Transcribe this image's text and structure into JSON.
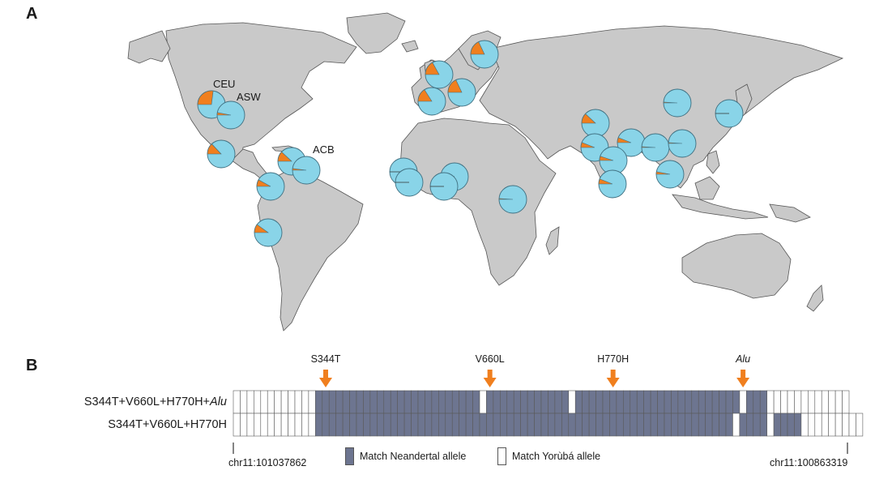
{
  "panel_a": {
    "label": "A",
    "population_labels": [
      {
        "id": "ceu",
        "text": "CEU"
      },
      {
        "id": "asw",
        "text": "ASW"
      },
      {
        "id": "acb",
        "text": "ACB"
      }
    ],
    "colors": {
      "land": "#c9c9c9",
      "land_stroke": "#555555",
      "pie_major": "#89d4e8",
      "pie_minor": "#f07f1e",
      "pie_stroke": "#3f6f80"
    },
    "pies": [
      {
        "id": "ceu",
        "fraction": 0.27
      },
      {
        "id": "asw",
        "fraction": 0.03
      },
      {
        "id": "mex",
        "fraction": 0.13
      },
      {
        "id": "pel",
        "fraction": 0.1
      },
      {
        "id": "clm",
        "fraction": 0.08
      },
      {
        "id": "pur",
        "fraction": 0.12
      },
      {
        "id": "acb",
        "fraction": 0.02
      },
      {
        "id": "fin",
        "fraction": 0.18
      },
      {
        "id": "gbr",
        "fraction": 0.17
      },
      {
        "id": "tsi",
        "fraction": 0.18
      },
      {
        "id": "ibs",
        "fraction": 0.16
      },
      {
        "id": "gwd",
        "fraction": 0.0
      },
      {
        "id": "msl",
        "fraction": 0.0
      },
      {
        "id": "esn",
        "fraction": 0.0
      },
      {
        "id": "yri",
        "fraction": 0.0
      },
      {
        "id": "lwk",
        "fraction": 0.01
      },
      {
        "id": "pjl",
        "fraction": 0.12
      },
      {
        "id": "gih",
        "fraction": 0.06
      },
      {
        "id": "beb",
        "fraction": 0.06
      },
      {
        "id": "stu",
        "fraction": 0.05
      },
      {
        "id": "itu",
        "fraction": 0.06
      },
      {
        "id": "cdx",
        "fraction": 0.01
      },
      {
        "id": "chb",
        "fraction": 0.01
      },
      {
        "id": "khv",
        "fraction": 0.03
      },
      {
        "id": "chs",
        "fraction": 0.01
      },
      {
        "id": "jpt",
        "fraction": 0.0
      }
    ]
  },
  "panel_b": {
    "label": "B",
    "rows": [
      {
        "label_html": "S344T+V660L+H770H+<i>Alu</i>",
        "cells": "WWWWWWWWWWWWNNNNNNNNNNNNNNNNNNNNNNNNWNNNNNNNNNNNNWNNNNNNNNNNNNNNNNNNNNNNNNWNNNWWWWWWWWWWWW"
      },
      {
        "label_html": "S344T+V660L+H770H",
        "cells": "WWWWWWWWWWWWNNNNNNNNNNNNNNNNNNNNNNNNNNNNNNNNNNNNNNNNNNNNNNNNNNNNNNNNNNNNNWNNNNWNNNNWWWWWWWWW"
      }
    ],
    "markers": [
      {
        "label_html": "S344T",
        "cell": 13
      },
      {
        "label_html": "V660L",
        "cell": 37
      },
      {
        "label_html": "H770H",
        "cell": 55
      },
      {
        "label_html": "<i>Alu</i>",
        "cell": 74
      }
    ],
    "coord_left": "chr11:101037862",
    "coord_right": "chr11:100863319",
    "legend": [
      {
        "id": "neandertal",
        "label": "Match Neandertal allele",
        "color": "#6d7590"
      },
      {
        "id": "yoruba",
        "label": "Match Yorùbá allele",
        "color": "#ffffff"
      }
    ],
    "arrow_color": "#f07f1e"
  }
}
